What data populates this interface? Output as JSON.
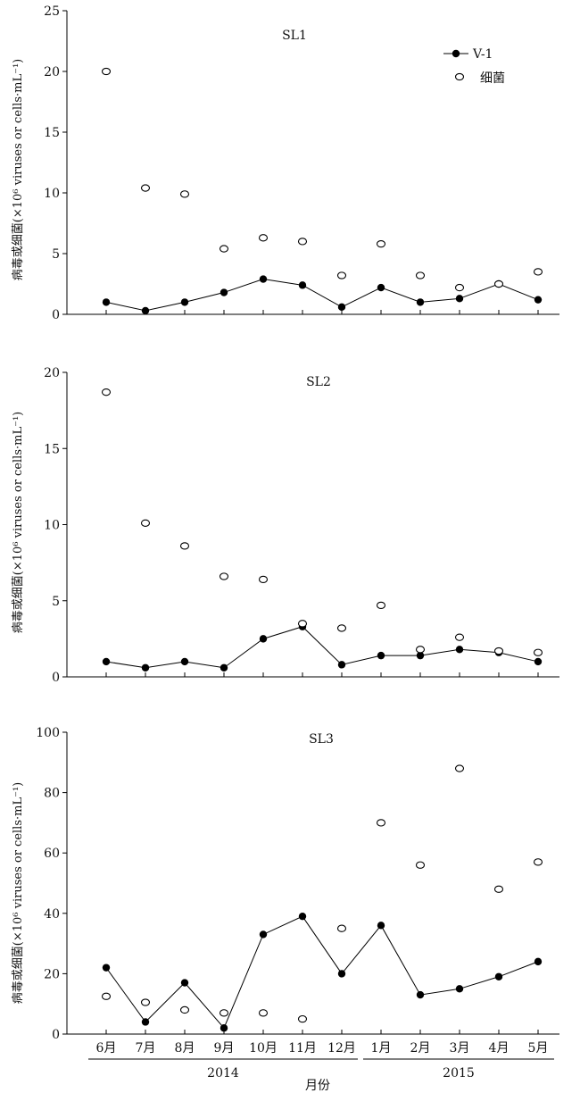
{
  "chart_data": [
    {
      "type": "line",
      "title": "SL1",
      "ylabel": "病毒或细菌(×10⁶ viruses or cells·mL⁻¹)",
      "ylim": [
        0,
        25
      ],
      "yticks": [
        0,
        5,
        10,
        15,
        20,
        25
      ],
      "categories": [
        "6月",
        "7月",
        "8月",
        "9月",
        "10月",
        "11月",
        "12月",
        "1月",
        "2月",
        "3月",
        "4月",
        "5月"
      ],
      "series": [
        {
          "name": "V-1",
          "style": "filled-line",
          "values": [
            1.0,
            0.3,
            1.0,
            1.8,
            2.9,
            2.4,
            0.6,
            2.2,
            1.0,
            1.3,
            2.5,
            1.2
          ]
        },
        {
          "name": "细菌",
          "style": "open-circle",
          "values": [
            20.0,
            10.4,
            9.9,
            5.4,
            6.3,
            6.0,
            3.2,
            5.8,
            3.2,
            2.2,
            2.5,
            3.5
          ]
        }
      ],
      "legend": {
        "position": "top-right",
        "entries": [
          "V-1",
          "细菌"
        ]
      }
    },
    {
      "type": "line",
      "title": "SL2",
      "ylabel": "病毒或细菌(×10⁶ viruses or cells·mL⁻¹)",
      "ylim": [
        0,
        20
      ],
      "yticks": [
        0,
        5,
        10,
        15,
        20
      ],
      "categories": [
        "6月",
        "7月",
        "8月",
        "9月",
        "10月",
        "11月",
        "12月",
        "1月",
        "2月",
        "3月",
        "4月",
        "5月"
      ],
      "series": [
        {
          "name": "V-1",
          "style": "filled-line",
          "values": [
            1.0,
            0.6,
            1.0,
            0.6,
            2.5,
            3.3,
            0.8,
            1.4,
            1.4,
            1.8,
            1.6,
            1.0
          ]
        },
        {
          "name": "细菌",
          "style": "open-circle",
          "values": [
            18.7,
            10.1,
            8.6,
            6.6,
            6.4,
            3.5,
            3.2,
            4.7,
            1.8,
            2.6,
            1.7,
            1.6
          ]
        }
      ]
    },
    {
      "type": "line",
      "title": "SL3",
      "ylabel": "病毒或细菌(×10⁶ viruses or cells·mL⁻¹)",
      "ylim": [
        0,
        100
      ],
      "yticks": [
        0,
        20,
        40,
        60,
        80,
        100
      ],
      "categories": [
        "6月",
        "7月",
        "8月",
        "9月",
        "10月",
        "11月",
        "12月",
        "1月",
        "2月",
        "3月",
        "4月",
        "5月"
      ],
      "series": [
        {
          "name": "V-1",
          "style": "filled-line",
          "values": [
            22,
            4,
            17,
            2,
            33,
            39,
            20,
            36,
            13,
            15,
            19,
            24
          ]
        },
        {
          "name": "细菌",
          "style": "open-circle",
          "values": [
            12.5,
            10.5,
            8,
            7,
            7,
            5,
            35,
            70,
            56,
            88,
            48,
            57
          ]
        }
      ],
      "xlabel": "月份",
      "year_groups": [
        {
          "label": "2014",
          "from": 0,
          "to": 6
        },
        {
          "label": "2015",
          "from": 7,
          "to": 11
        }
      ]
    }
  ]
}
